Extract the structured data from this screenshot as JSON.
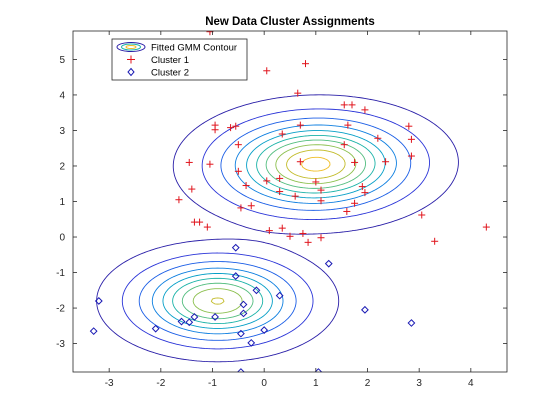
{
  "chart_data": {
    "type": "scatter",
    "title": "New Data Cluster Assignments",
    "xlabel": "",
    "ylabel": "",
    "xlim": [
      -3.7,
      4.7
    ],
    "ylim": [
      -3.8,
      5.8
    ],
    "xticks": [
      -3,
      -2,
      -1,
      0,
      1,
      2,
      3,
      4
    ],
    "yticks": [
      -3,
      -2,
      -1,
      0,
      1,
      2,
      3,
      4,
      5
    ],
    "grid": false,
    "legend_position": "top-left",
    "contours": {
      "name": "Fitted GMM Contour",
      "components": [
        {
          "weight": 0.6,
          "mean": [
            1.0,
            2.05
          ],
          "cov": [
            [
              1.0,
              0.02
            ],
            [
              0.02,
              0.5
            ]
          ]
        },
        {
          "weight": 0.4,
          "mean": [
            -0.9,
            -1.8
          ],
          "cov": [
            [
              0.75,
              0.0
            ],
            [
              0.0,
              0.4
            ]
          ]
        }
      ],
      "levels": [
        0.003,
        0.012,
        0.025,
        0.04,
        0.055,
        0.07,
        0.085,
        0.1,
        0.115,
        0.13
      ],
      "colors": [
        "#2a1fa8",
        "#2b35d8",
        "#1b5ee6",
        "#0e7fe0",
        "#069fc7",
        "#1cb3a8",
        "#53bd7f",
        "#8dc050",
        "#c3bc2c",
        "#efbd24"
      ]
    },
    "series": [
      {
        "name": "Cluster 1",
        "marker": "plus",
        "color": "#e0141c",
        "points": [
          [
            -1.05,
            5.78
          ],
          [
            0.05,
            4.68
          ],
          [
            0.8,
            4.88
          ],
          [
            0.65,
            4.05
          ],
          [
            1.55,
            3.72
          ],
          [
            1.7,
            3.72
          ],
          [
            1.95,
            3.58
          ],
          [
            -0.95,
            3.15
          ],
          [
            -0.95,
            3.02
          ],
          [
            -0.65,
            3.08
          ],
          [
            -0.55,
            3.12
          ],
          [
            0.35,
            2.9
          ],
          [
            0.7,
            3.15
          ],
          [
            1.62,
            3.15
          ],
          [
            2.8,
            3.12
          ],
          [
            2.2,
            2.78
          ],
          [
            2.85,
            2.75
          ],
          [
            -0.5,
            2.6
          ],
          [
            1.55,
            2.6
          ],
          [
            -1.45,
            2.1
          ],
          [
            -1.05,
            2.05
          ],
          [
            0.7,
            2.12
          ],
          [
            1.75,
            2.1
          ],
          [
            2.35,
            2.12
          ],
          [
            2.85,
            2.28
          ],
          [
            -0.5,
            1.85
          ],
          [
            0.3,
            1.65
          ],
          [
            -0.35,
            1.45
          ],
          [
            0.05,
            1.58
          ],
          [
            1.0,
            1.55
          ],
          [
            -1.4,
            1.35
          ],
          [
            0.3,
            1.28
          ],
          [
            1.1,
            1.32
          ],
          [
            0.6,
            1.15
          ],
          [
            1.95,
            1.25
          ],
          [
            1.9,
            1.42
          ],
          [
            -1.65,
            1.05
          ],
          [
            1.1,
            1.02
          ],
          [
            1.6,
            0.72
          ],
          [
            -0.45,
            0.82
          ],
          [
            -0.25,
            0.88
          ],
          [
            1.75,
            0.95
          ],
          [
            -1.35,
            0.42
          ],
          [
            -1.25,
            0.42
          ],
          [
            -1.1,
            0.28
          ],
          [
            0.1,
            0.18
          ],
          [
            0.35,
            0.25
          ],
          [
            0.5,
            0.02
          ],
          [
            0.75,
            0.1
          ],
          [
            0.85,
            -0.15
          ],
          [
            1.1,
            -0.02
          ],
          [
            3.05,
            0.62
          ],
          [
            3.3,
            -0.12
          ],
          [
            4.3,
            0.28
          ]
        ]
      },
      {
        "name": "Cluster 2",
        "marker": "diamond",
        "color": "#1a1ab4",
        "points": [
          [
            -0.55,
            -0.3
          ],
          [
            1.25,
            -0.75
          ],
          [
            -0.55,
            -1.1
          ],
          [
            -0.15,
            -1.5
          ],
          [
            0.3,
            -1.65
          ],
          [
            -0.4,
            -1.9
          ],
          [
            -3.2,
            -1.8
          ],
          [
            -1.35,
            -2.25
          ],
          [
            -0.95,
            -2.25
          ],
          [
            -1.6,
            -2.38
          ],
          [
            -1.45,
            -2.4
          ],
          [
            -2.1,
            -2.58
          ],
          [
            -0.4,
            -2.15
          ],
          [
            1.95,
            -2.05
          ],
          [
            2.85,
            -2.42
          ],
          [
            0.0,
            -2.62
          ],
          [
            -0.45,
            -2.72
          ],
          [
            -0.25,
            -2.98
          ],
          [
            -3.3,
            -2.65
          ],
          [
            -0.45,
            -3.8
          ],
          [
            1.05,
            -3.8
          ]
        ]
      }
    ],
    "legend": [
      "Fitted GMM Contour",
      "Cluster 1",
      "Cluster 2"
    ]
  }
}
